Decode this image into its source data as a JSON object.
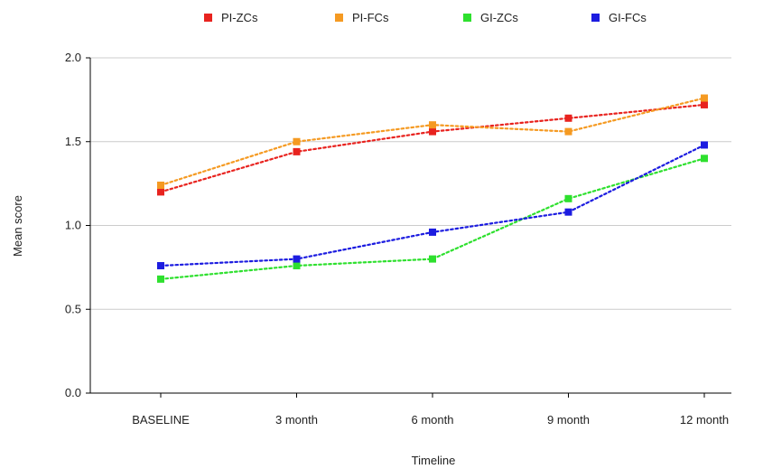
{
  "chart_data": {
    "type": "line",
    "categories": [
      "BASELINE",
      "3 month",
      "6 month",
      "9 month",
      "12 month"
    ],
    "series": [
      {
        "name": "PI-ZCs",
        "color": "#e8231f",
        "values": [
          1.2,
          1.44,
          1.56,
          1.64,
          1.72
        ]
      },
      {
        "name": "PI-FCs",
        "color": "#f59a22",
        "values": [
          1.24,
          1.5,
          1.6,
          1.56,
          1.76
        ]
      },
      {
        "name": "GI-ZCs",
        "color": "#2ee02e",
        "values": [
          0.68,
          0.76,
          0.8,
          1.16,
          1.4
        ]
      },
      {
        "name": "GI-FCs",
        "color": "#1c1ce0",
        "values": [
          0.76,
          0.8,
          0.96,
          1.08,
          1.48
        ]
      }
    ],
    "xlabel": "Timeline",
    "ylabel": "Mean score",
    "ylim": [
      0,
      2.0
    ],
    "yticks": [
      "0.0",
      "0.5",
      "1.0",
      "1.5",
      "2.0"
    ],
    "grid": "horizontal",
    "line_style": "dotted",
    "legend_position": "top-center"
  }
}
